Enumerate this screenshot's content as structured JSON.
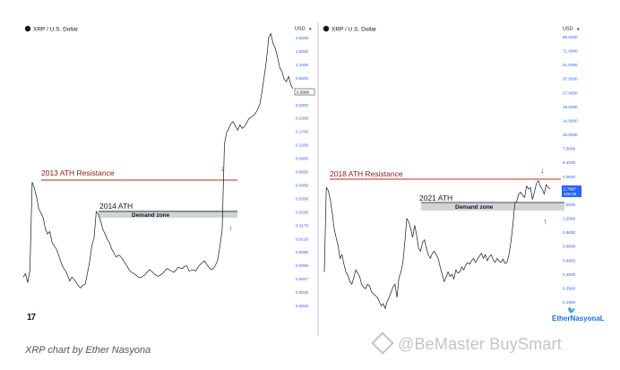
{
  "chart_data": [
    {
      "type": "line",
      "pair": "XRP / U.S. Dollar",
      "currency": "USD",
      "y_scale": "log",
      "price_ticks": [
        "2.0000",
        "1.5000",
        "1.1000",
        "0.6000",
        "0.4500",
        "0.3300",
        "0.2300",
        "0.1700",
        "0.1200",
        "0.0900",
        "0.0650",
        "0.0450",
        "0.0330",
        "0.0230",
        "0.0170",
        "0.0120",
        "0.0090",
        "0.0065",
        "0.0047",
        "0.0035",
        "0.0026"
      ],
      "current_price": "0.5888",
      "annotations": {
        "resistance": "2013 ATH Resistance",
        "ath": "2014 ATH",
        "zone": "Demand zone"
      },
      "series": [
        {
          "values": [
            0.0055,
            0.006,
            0.0048,
            0.0065,
            0.058,
            0.05,
            0.04,
            0.03,
            0.027,
            0.024,
            0.018,
            0.016,
            0.017,
            0.013,
            0.012,
            0.011,
            0.0095,
            0.008,
            0.007,
            0.0065,
            0.0058,
            0.005,
            0.0055,
            0.0052,
            0.0048,
            0.0044,
            0.0042,
            0.0045,
            0.0046,
            0.006,
            0.008,
            0.012,
            0.0145,
            0.028,
            0.026,
            0.022,
            0.018,
            0.016,
            0.014,
            0.013,
            0.011,
            0.01,
            0.009,
            0.0095,
            0.0092,
            0.0085,
            0.0078,
            0.0072,
            0.0065,
            0.0062,
            0.006,
            0.0058,
            0.0055,
            0.0054,
            0.0056,
            0.0058,
            0.0062,
            0.0066,
            0.0064,
            0.006,
            0.0058,
            0.0056,
            0.0058,
            0.006,
            0.0064,
            0.0068,
            0.0066,
            0.0064,
            0.0062,
            0.0065,
            0.007,
            0.0069,
            0.0068,
            0.0072,
            0.0073,
            0.0064,
            0.0065,
            0.0066,
            0.0064,
            0.007,
            0.0075,
            0.0079,
            0.0082,
            0.0075,
            0.007,
            0.0066,
            0.0068,
            0.0074,
            0.0085,
            0.012,
            0.018,
            0.15,
            0.2,
            0.22,
            0.25,
            0.26,
            0.23,
            0.21,
            0.24,
            0.22,
            0.23,
            0.25,
            0.28,
            0.29,
            0.3,
            0.32,
            0.35,
            0.4,
            0.55,
            0.8,
            1.2,
            2.1,
            2.3,
            1.8,
            1.6,
            1.3,
            1.0,
            0.9,
            0.75,
            0.7,
            0.8,
            0.65,
            0.59
          ]
        }
      ]
    },
    {
      "type": "line",
      "pair": "XRP / U.S. Dollar",
      "currency": "USD",
      "y_scale": "log",
      "price_ticks": [
        "95.0000",
        "71.0000",
        "51.0000",
        "37.0000",
        "27.0000",
        "19.0000",
        "14.0000",
        "10.0000",
        "7.5000",
        "5.4000",
        "4.0000",
        "3.0000",
        "1.6000",
        "1.2000",
        "0.9000",
        "0.6500",
        "0.4800",
        "0.3500",
        "0.2500",
        "0.1900"
      ],
      "current_price": "2.7987",
      "countdown": "126:18",
      "annotations": {
        "resistance": "2018 ATH Resistance",
        "ath": "2021 ATH",
        "zone": "Demand zone"
      },
      "series": [
        {
          "values": [
            0.4,
            2.9,
            2.7,
            2.2,
            1.6,
            1.1,
            0.9,
            0.75,
            0.55,
            0.6,
            0.48,
            0.4,
            0.37,
            0.32,
            0.3,
            0.35,
            0.42,
            0.39,
            0.36,
            0.3,
            0.28,
            0.27,
            0.3,
            0.29,
            0.25,
            0.24,
            0.23,
            0.22,
            0.2,
            0.18,
            0.19,
            0.17,
            0.2,
            0.22,
            0.25,
            0.28,
            0.3,
            0.22,
            0.35,
            0.4,
            0.5,
            0.8,
            1.4,
            1.3,
            1.1,
            0.9,
            1.2,
            0.95,
            0.7,
            0.65,
            0.8,
            0.85,
            0.7,
            0.6,
            0.55,
            0.62,
            0.65,
            0.6,
            0.55,
            0.45,
            0.38,
            0.32,
            0.35,
            0.4,
            0.36,
            0.38,
            0.34,
            0.42,
            0.39,
            0.4,
            0.45,
            0.42,
            0.47,
            0.5,
            0.48,
            0.52,
            0.55,
            0.5,
            0.54,
            0.58,
            0.62,
            0.55,
            0.6,
            0.52,
            0.57,
            0.6,
            0.53,
            0.5,
            0.55,
            0.52,
            0.5,
            0.54,
            0.49,
            0.5,
            0.6,
            0.8,
            1.2,
            2.0,
            2.1,
            2.5,
            2.6,
            2.4,
            2.3,
            3.0,
            2.8,
            2.9,
            2.2,
            2.6,
            3.2,
            3.4,
            3.0,
            2.8,
            2.5,
            3.1,
            2.9,
            2.8
          ]
        }
      ]
    }
  ],
  "caption": "XRP chart by Ether Nasyona",
  "watermark": "@BeMaster BuySmart",
  "brand": "EtherNasyonaL",
  "tv_logo": "17"
}
